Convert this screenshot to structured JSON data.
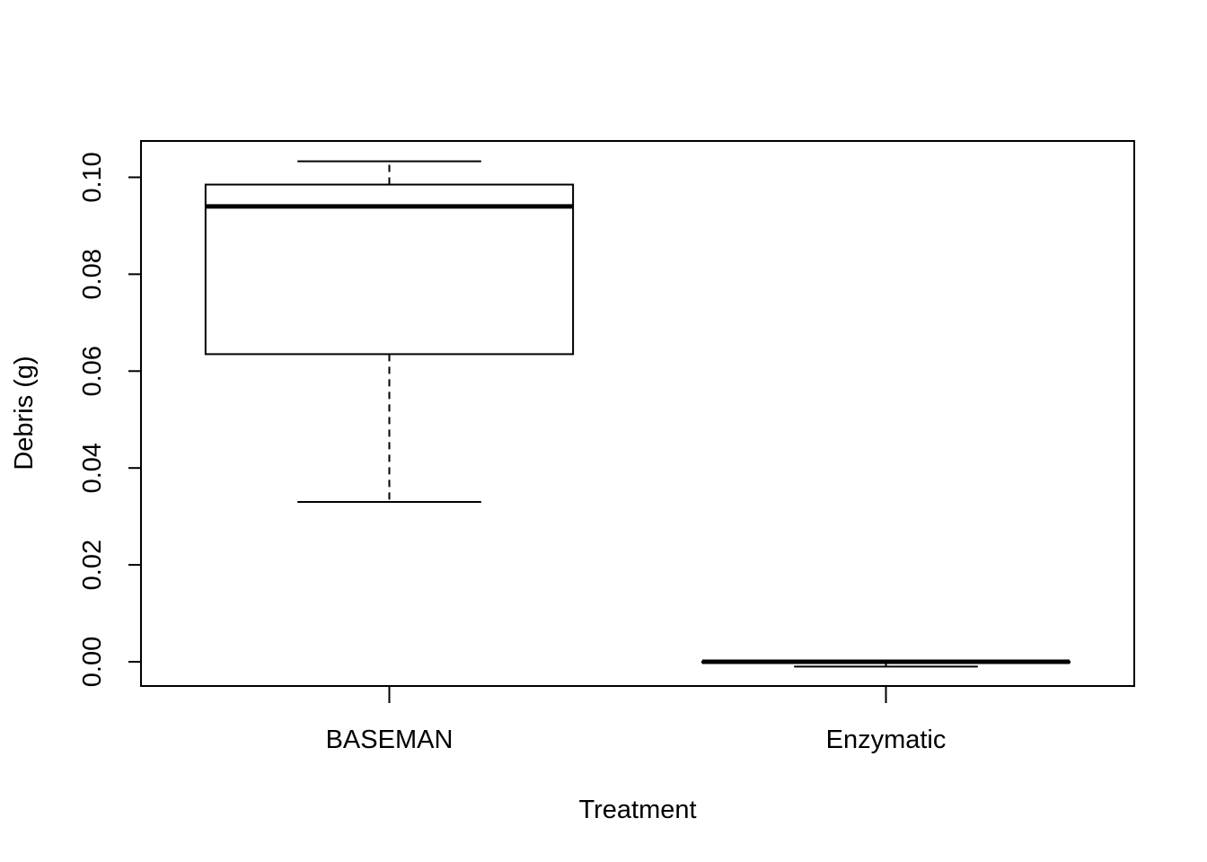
{
  "chart_data": {
    "type": "boxplot",
    "title": "",
    "xlabel": "Treatment",
    "ylabel": "Debris (g)",
    "ylim": [
      -0.005,
      0.1075
    ],
    "yticks": [
      "0.00",
      "0.02",
      "0.04",
      "0.06",
      "0.08",
      "0.10"
    ],
    "grid": false,
    "categories": [
      "BASEMAN",
      "Enzymatic"
    ],
    "boxes": [
      {
        "category": "BASEMAN",
        "whisker_low": 0.033,
        "q1": 0.0635,
        "median": 0.094,
        "q3": 0.0985,
        "whisker_high": 0.1033
      },
      {
        "category": "Enzymatic",
        "whisker_low": -0.001,
        "q1": 0.0,
        "median": 0.0,
        "q3": 0.0,
        "whisker_high": 0.0
      }
    ]
  }
}
